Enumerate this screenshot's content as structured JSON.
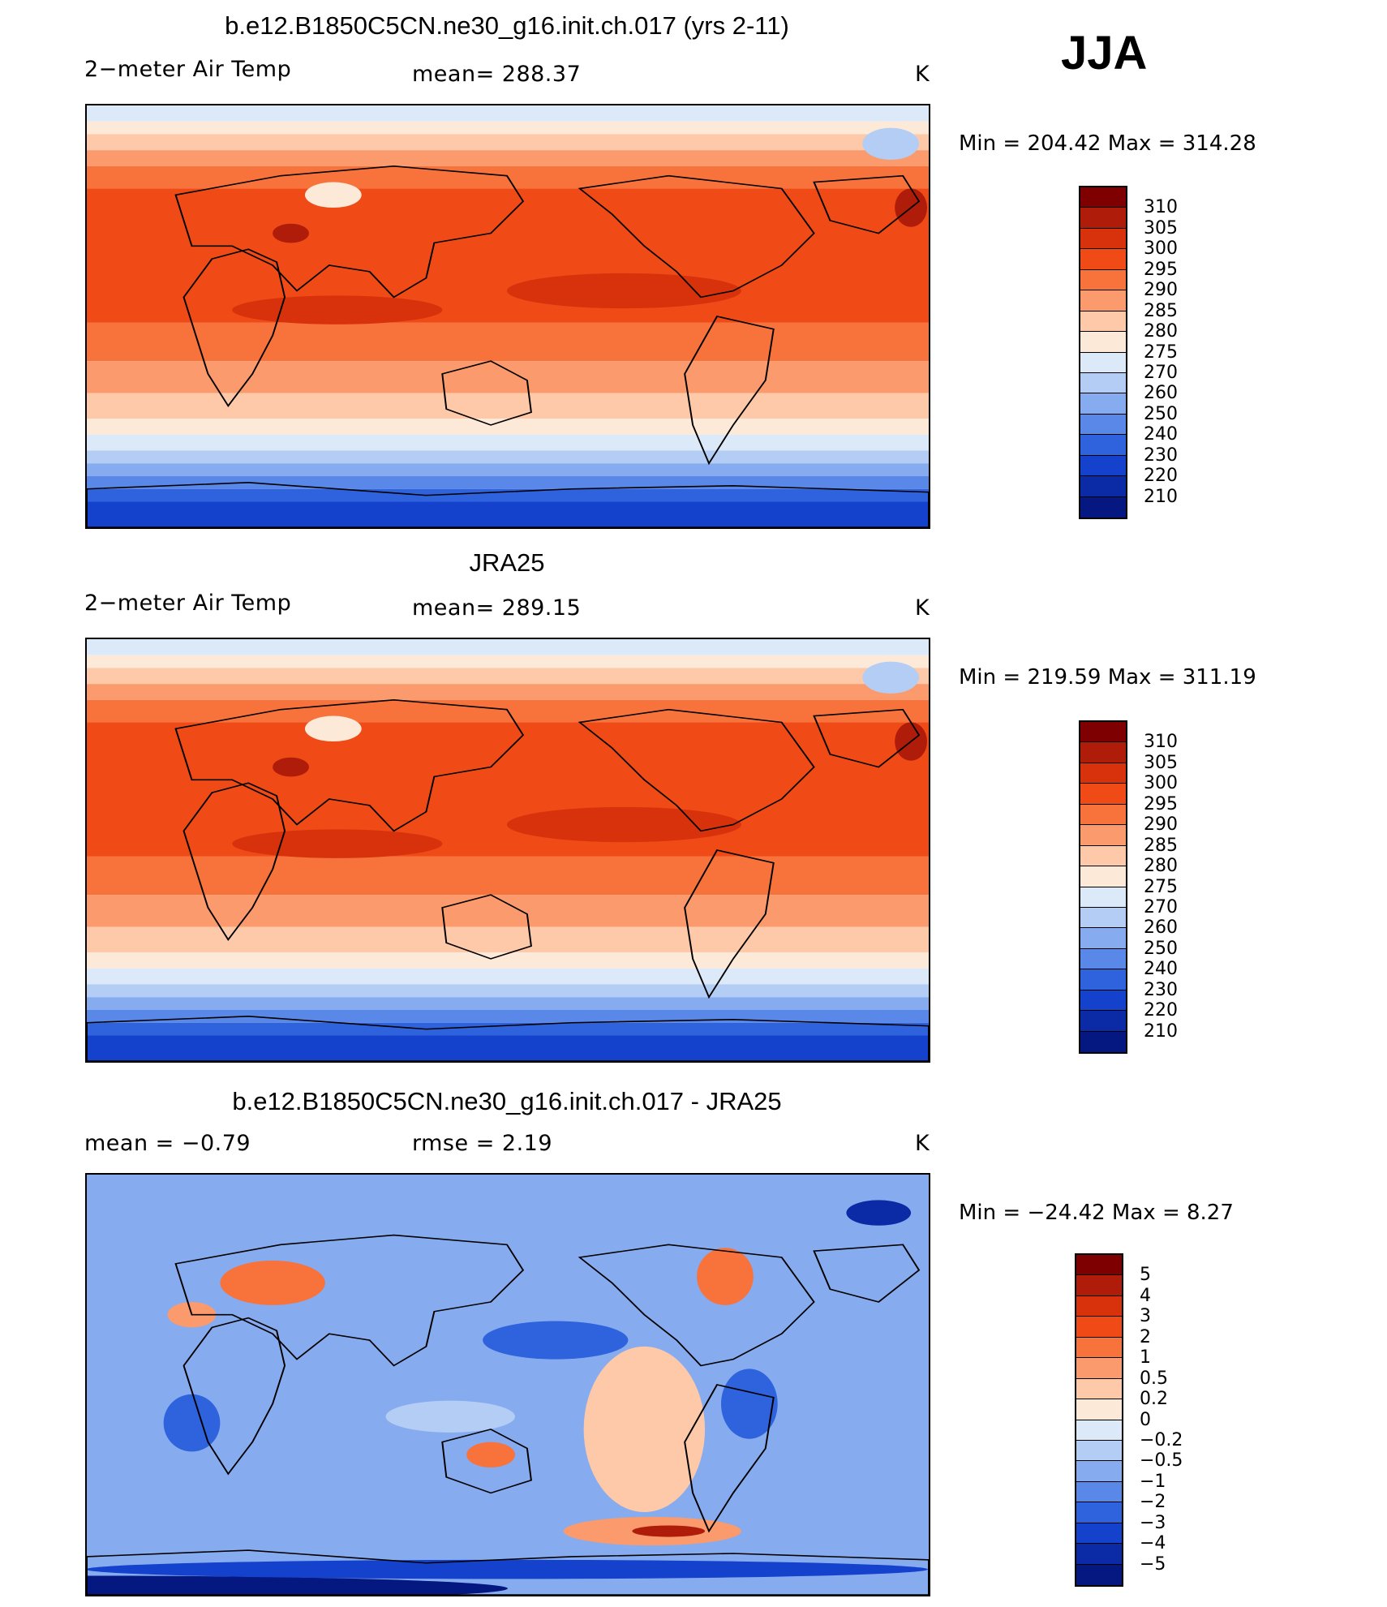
{
  "season": "JJA",
  "units": "K",
  "panels": [
    {
      "id": "model",
      "title": "b.e12.B1850C5CN.ne30_g16.init.ch.017 (yrs 2-11)",
      "left_label": "2−meter Air Temp",
      "stat_label": "mean=  288.37",
      "units": "K",
      "minmax": "Min  =  204.42  Max  =  314.28",
      "colorbar_labels": [
        "310",
        "305",
        "300",
        "295",
        "290",
        "285",
        "280",
        "275",
        "270",
        "260",
        "250",
        "240",
        "230",
        "220",
        "210"
      ]
    },
    {
      "id": "obs",
      "title": "JRA25",
      "left_label": "2−meter Air Temp",
      "stat_label": "mean=  289.15",
      "units": "K",
      "minmax": "Min  =  219.59  Max  =  311.19",
      "colorbar_labels": [
        "310",
        "305",
        "300",
        "295",
        "290",
        "285",
        "280",
        "275",
        "270",
        "260",
        "250",
        "240",
        "230",
        "220",
        "210"
      ]
    },
    {
      "id": "diff",
      "title": "b.e12.B1850C5CN.ne30_g16.init.ch.017 - JRA25",
      "left_label": "mean  =    −0.79",
      "stat_label": "rmse  =     2.19",
      "units": "K",
      "minmax": "Min  =  −24.42  Max  =     8.27",
      "colorbar_labels": [
        "5",
        "4",
        "3",
        "2",
        "1",
        "0.5",
        "0.2",
        "0",
        "−0.2",
        "−0.5",
        "−1",
        "−2",
        "−3",
        "−4",
        "−5"
      ]
    }
  ],
  "colors": {
    "palette": [
      "#7f0000",
      "#b01c0a",
      "#d8320c",
      "#f04a16",
      "#f8723c",
      "#fb9a6c",
      "#fdc9a8",
      "#fde9d8",
      "#dbe9f9",
      "#b3cdf5",
      "#86acef",
      "#5a88e8",
      "#2e63dd",
      "#1442cc",
      "#0a2aa6",
      "#051780"
    ]
  }
}
